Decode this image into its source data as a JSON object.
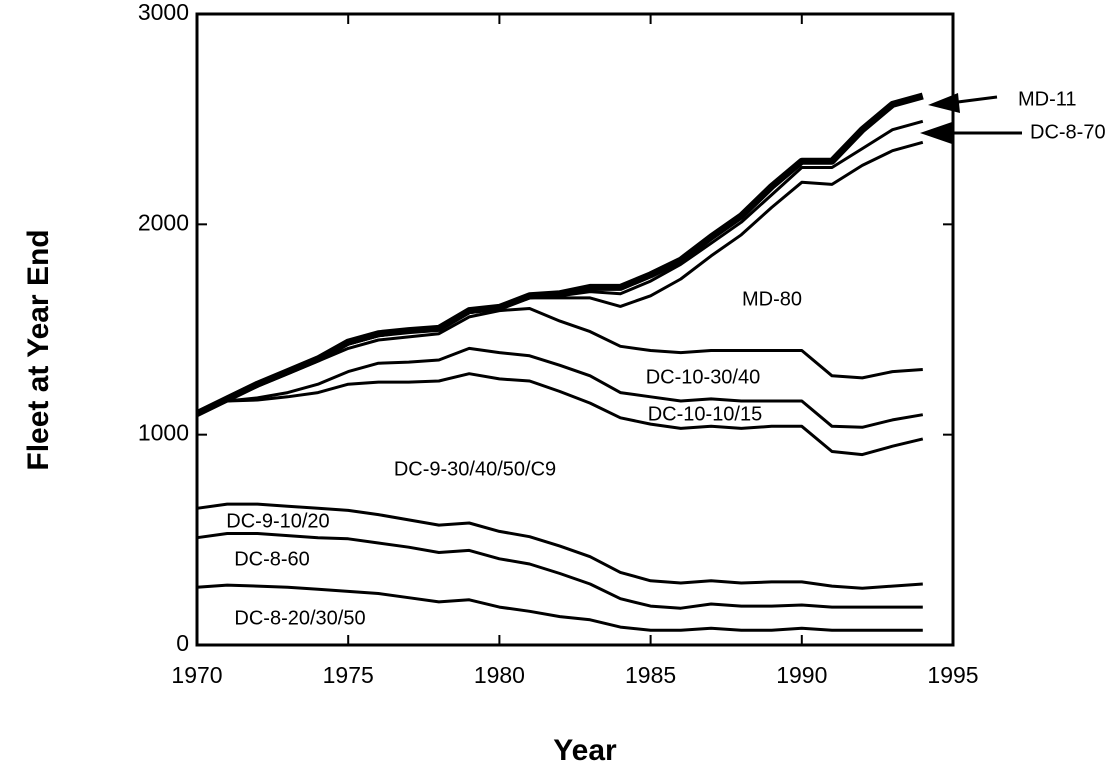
{
  "chart_data": {
    "type": "stacked_line",
    "x_label": "Year",
    "y_label": "Fleet at Year End",
    "x": [
      1970,
      1971,
      1972,
      1973,
      1974,
      1975,
      1976,
      1977,
      1978,
      1979,
      1980,
      1981,
      1982,
      1983,
      1984,
      1985,
      1986,
      1987,
      1988,
      1989,
      1990,
      1991,
      1992,
      1993,
      1994
    ],
    "series": [
      {
        "name": "DC-8-20/30/50",
        "color": "#000000",
        "values": [
          275,
          285,
          280,
          275,
          265,
          255,
          245,
          225,
          205,
          215,
          180,
          160,
          135,
          120,
          85,
          70,
          70,
          80,
          70,
          70,
          80,
          70,
          70,
          70,
          70
        ]
      },
      {
        "name": "DC-8-60",
        "color": "#000000",
        "values": [
          235,
          245,
          250,
          245,
          245,
          250,
          240,
          240,
          235,
          235,
          230,
          225,
          205,
          170,
          135,
          115,
          105,
          115,
          115,
          115,
          110,
          110,
          110,
          110,
          110
        ]
      },
      {
        "name": "DC-9-10/20",
        "color": "#000000",
        "values": [
          140,
          140,
          140,
          140,
          140,
          135,
          135,
          130,
          130,
          130,
          130,
          130,
          130,
          130,
          125,
          120,
          120,
          110,
          110,
          115,
          110,
          100,
          90,
          100,
          110
        ]
      },
      {
        "name": "DC-9-30/40/50/C9",
        "color": "#000000",
        "values": [
          450,
          490,
          495,
          520,
          550,
          600,
          630,
          655,
          685,
          710,
          725,
          740,
          735,
          730,
          735,
          745,
          735,
          735,
          735,
          740,
          740,
          640,
          635,
          665,
          690
        ]
      },
      {
        "name": "DC-10-10/15",
        "color": "#000000",
        "values": [
          0,
          0,
          10,
          20,
          40,
          60,
          90,
          95,
          100,
          120,
          125,
          120,
          125,
          130,
          120,
          130,
          130,
          130,
          130,
          120,
          120,
          120,
          130,
          125,
          115
        ]
      },
      {
        "name": "DC-10-30/40",
        "color": "#000000",
        "values": [
          0,
          10,
          55,
          90,
          110,
          110,
          110,
          120,
          125,
          150,
          200,
          225,
          210,
          210,
          220,
          220,
          230,
          230,
          240,
          240,
          240,
          240,
          235,
          230,
          215
        ]
      },
      {
        "name": "MD-80",
        "color": "#000000",
        "values": [
          0,
          0,
          10,
          10,
          10,
          20,
          20,
          25,
          20,
          20,
          10,
          50,
          110,
          160,
          190,
          260,
          350,
          450,
          550,
          680,
          800,
          910,
          1010,
          1050,
          1080
        ]
      },
      {
        "name": "DC-8-70",
        "color": "#000000",
        "values": [
          0,
          0,
          0,
          0,
          0,
          0,
          0,
          0,
          0,
          0,
          0,
          0,
          10,
          30,
          60,
          70,
          70,
          60,
          60,
          60,
          70,
          80,
          80,
          100,
          100
        ]
      },
      {
        "name": "MD-11",
        "color": "#000000",
        "values": [
          0,
          0,
          0,
          0,
          0,
          10,
          10,
          5,
          5,
          10,
          5,
          10,
          10,
          20,
          30,
          30,
          20,
          30,
          30,
          40,
          30,
          30,
          90,
          120,
          120
        ]
      }
    ],
    "xlim": [
      1970,
      1995
    ],
    "xticks": [
      1970,
      1975,
      1980,
      1985,
      1990,
      1995
    ],
    "ylim": [
      0,
      3000
    ],
    "yticks": [
      0,
      1000,
      2000,
      3000
    ]
  }
}
